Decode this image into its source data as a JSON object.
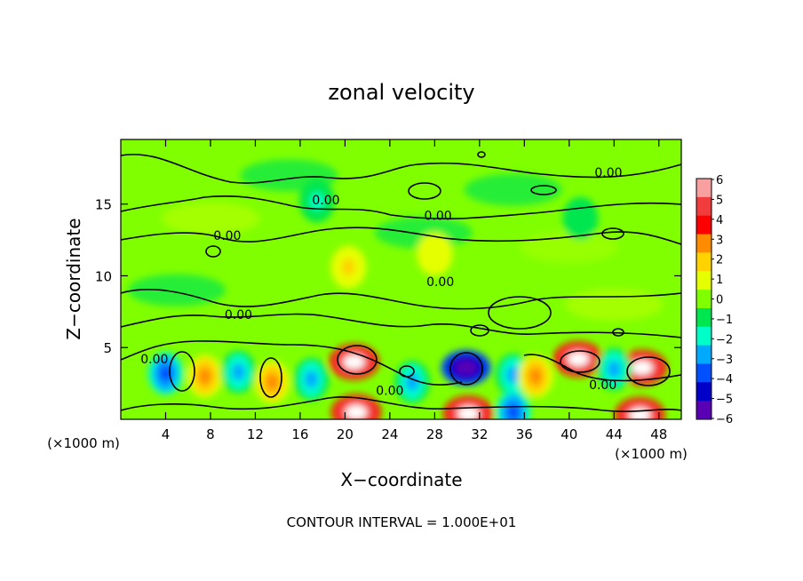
{
  "chart_data": {
    "type": "heatmap",
    "title": "zonal velocity",
    "xlabel": "X−coordinate",
    "ylabel": "Z−coordinate",
    "x_unit_left": "(×1000 m)",
    "x_unit_right": "(×1000 m)",
    "xlim": [
      0,
      50
    ],
    "ylim": [
      0,
      19.5
    ],
    "x_ticks": [
      4,
      8,
      12,
      16,
      20,
      24,
      28,
      32,
      36,
      40,
      44,
      48
    ],
    "y_ticks": [
      5,
      10,
      15
    ],
    "colorbar": {
      "ticks": [
        6,
        5,
        4,
        3,
        2,
        1,
        0,
        -1,
        -2,
        -3,
        -4,
        -5,
        -6
      ],
      "tick_labels": [
        "6",
        "5",
        "4",
        "3",
        "2",
        "1",
        "0",
        "−1",
        "−2",
        "−3",
        "−4",
        "−5",
        "−6"
      ],
      "colors": [
        "#f8a0a0",
        "#f03c3c",
        "#ff0000",
        "#ff8c00",
        "#ffd200",
        "#e6ff00",
        "#80ff00",
        "#00e650",
        "#00ffc8",
        "#00aaff",
        "#0050ff",
        "#0000c8",
        "#5a00b4"
      ]
    },
    "contour_labels": [
      {
        "text": "0.00",
        "x": 43.5,
        "z": 17.2
      },
      {
        "text": "0.00",
        "x": 18.3,
        "z": 15.3
      },
      {
        "text": "0.00",
        "x": 28.3,
        "z": 14.2
      },
      {
        "text": "0.00",
        "x": 9.5,
        "z": 12.8
      },
      {
        "text": "0.00",
        "x": 28.5,
        "z": 9.6
      },
      {
        "text": "0.00",
        "x": 10.5,
        "z": 7.3
      },
      {
        "text": "0.00",
        "x": 3.0,
        "z": 4.2
      },
      {
        "text": "0.00",
        "x": 24.0,
        "z": 2.0
      },
      {
        "text": "0.00",
        "x": 43.0,
        "z": 2.4
      }
    ],
    "features": [
      {
        "x": 20.8,
        "z": 4.0,
        "value": 6
      },
      {
        "x": 40.8,
        "z": 4.2,
        "value": 6
      },
      {
        "x": 46.5,
        "z": 3.6,
        "value": 6
      },
      {
        "x": 30.8,
        "z": 3.6,
        "value": -6
      },
      {
        "x": 21.0,
        "z": 0.5,
        "value": 6
      },
      {
        "x": 31.0,
        "z": 0.4,
        "value": 6
      },
      {
        "x": 46.3,
        "z": 0.3,
        "value": 6
      },
      {
        "x": 4.0,
        "z": 3.2,
        "value": -4
      },
      {
        "x": 7.5,
        "z": 3.0,
        "value": 3
      },
      {
        "x": 10.5,
        "z": 3.3,
        "value": -3
      },
      {
        "x": 13.5,
        "z": 2.6,
        "value": 3
      },
      {
        "x": 17.0,
        "z": 2.8,
        "value": -3
      },
      {
        "x": 26.0,
        "z": 2.6,
        "value": -3
      },
      {
        "x": 35.0,
        "z": 3.1,
        "value": -3
      },
      {
        "x": 37.0,
        "z": 3.0,
        "value": 3
      },
      {
        "x": 44.0,
        "z": 3.5,
        "value": -3
      },
      {
        "x": 35.0,
        "z": 0.5,
        "value": -4
      },
      {
        "x": 17.5,
        "z": 15.2,
        "value": -2
      },
      {
        "x": 41.0,
        "z": 14.0,
        "value": -1
      },
      {
        "x": 28.0,
        "z": 11.5,
        "value": 1
      },
      {
        "x": 20.3,
        "z": 10.6,
        "value": 2
      }
    ],
    "grid": false
  },
  "footer": {
    "contour_interval": "CONTOUR INTERVAL = 1.000E+01"
  },
  "colors": {
    "background": "#80ff00",
    "frame": "#000000",
    "contour": "#000000"
  }
}
